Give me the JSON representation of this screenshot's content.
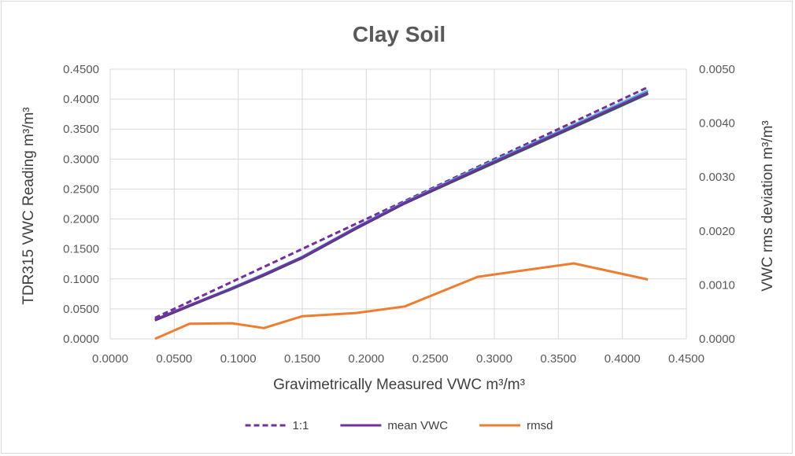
{
  "chart_data": {
    "type": "line",
    "title": "Clay Soil",
    "xlabel": "Gravimetrically Measured VWC m³/m³",
    "ylabel": "TDR315 VWC Reading m³/m³",
    "y2label": "VWC rms deviation m³/m³",
    "xlim": [
      0,
      0.45
    ],
    "ylim": [
      0,
      0.45
    ],
    "y2lim": [
      0,
      0.005
    ],
    "x_ticks": [
      "0.0000",
      "0.0500",
      "0.1000",
      "0.1500",
      "0.2000",
      "0.2500",
      "0.3000",
      "0.3500",
      "0.4000",
      "0.4500"
    ],
    "y_ticks": [
      "0.0000",
      "0.0500",
      "0.1000",
      "0.1500",
      "0.2000",
      "0.2500",
      "0.3000",
      "0.3500",
      "0.4000",
      "0.4500"
    ],
    "y2_ticks": [
      "0.0000",
      "0.0010",
      "0.0020",
      "0.0030",
      "0.0040",
      "0.0050"
    ],
    "grid": true,
    "legend_position": "bottom",
    "series": [
      {
        "name": "1:1",
        "axis": "left",
        "style": "dashed",
        "color": "#7030a0",
        "x": [
          0.035,
          0.42
        ],
        "y": [
          0.035,
          0.42
        ]
      },
      {
        "axis": "left",
        "style": "solid",
        "color": "#4ab3d6",
        "x": [
          0.035,
          0.062,
          0.095,
          0.12,
          0.15,
          0.192,
          0.23,
          0.287,
          0.362,
          0.42
        ],
        "y": [
          0.032,
          0.056,
          0.085,
          0.108,
          0.137,
          0.186,
          0.228,
          0.285,
          0.357,
          0.414
        ]
      },
      {
        "axis": "left",
        "style": "solid",
        "color": "#2e8b57",
        "x": [
          0.035,
          0.062,
          0.095,
          0.12,
          0.15,
          0.192,
          0.23,
          0.287,
          0.362,
          0.42
        ],
        "y": [
          0.031,
          0.055,
          0.083,
          0.106,
          0.135,
          0.184,
          0.226,
          0.281,
          0.353,
          0.409
        ]
      },
      {
        "axis": "left",
        "style": "solid",
        "color": "#404040",
        "x": [
          0.035,
          0.062,
          0.095,
          0.12,
          0.15,
          0.192,
          0.23,
          0.287,
          0.362,
          0.42
        ],
        "y": [
          0.031,
          0.055,
          0.084,
          0.106,
          0.135,
          0.184,
          0.226,
          0.282,
          0.354,
          0.41
        ]
      },
      {
        "name": "mean VWC",
        "axis": "left",
        "style": "solid",
        "color": "#7030a0",
        "x": [
          0.035,
          0.062,
          0.095,
          0.12,
          0.15,
          0.192,
          0.23,
          0.287,
          0.362,
          0.42
        ],
        "y": [
          0.032,
          0.056,
          0.084,
          0.107,
          0.136,
          0.185,
          0.227,
          0.283,
          0.355,
          0.411
        ]
      },
      {
        "name": "rmsd",
        "axis": "right",
        "style": "solid",
        "color": "#ed7d31",
        "x": [
          0.035,
          0.062,
          0.095,
          0.12,
          0.15,
          0.192,
          0.23,
          0.287,
          0.362,
          0.42
        ],
        "y": [
          0.0,
          0.00028,
          0.00029,
          0.0002,
          0.00042,
          0.00048,
          0.0006,
          0.00115,
          0.0014,
          0.0011
        ]
      }
    ],
    "legend": [
      {
        "label": "1:1",
        "color": "#7030a0",
        "style": "dashed"
      },
      {
        "label": "mean VWC",
        "color": "#7030a0",
        "style": "solid"
      },
      {
        "label": "rmsd",
        "color": "#ed7d31",
        "style": "solid"
      }
    ]
  }
}
